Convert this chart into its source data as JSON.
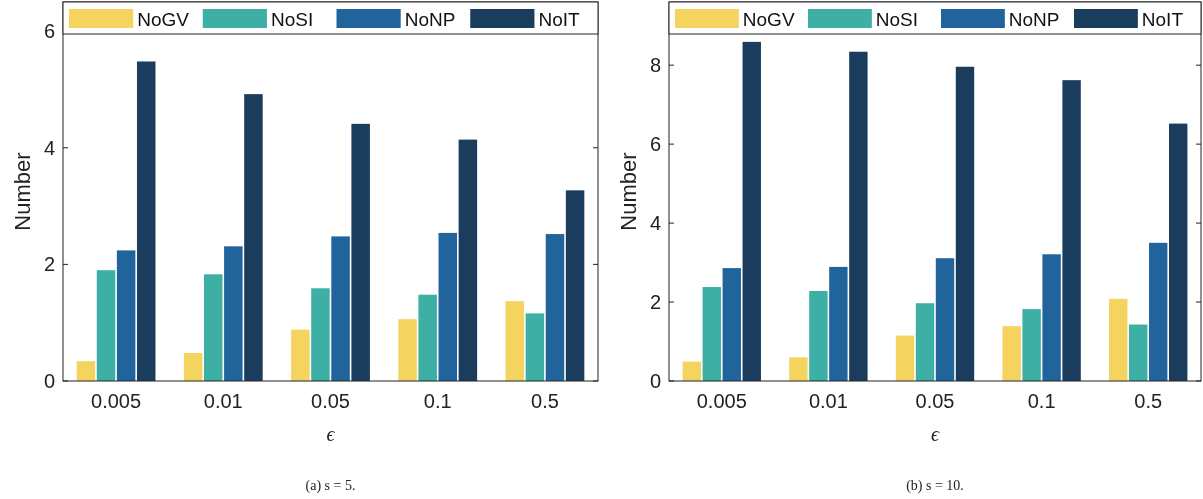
{
  "chart_data": [
    {
      "type": "bar",
      "title": "(a) s = 5.",
      "xlabel": "ϵ",
      "ylabel": "Number",
      "categories": [
        "0.005",
        "0.01",
        "0.05",
        "0.1",
        "0.5"
      ],
      "ylim": [
        0,
        6.5
      ],
      "yticks": [
        0,
        2,
        4,
        6
      ],
      "grid": false,
      "legend": "top",
      "series": [
        {
          "name": "NoGV",
          "color": "#f4d35e",
          "values": [
            0.34,
            0.48,
            0.88,
            1.06,
            1.37
          ]
        },
        {
          "name": "NoSI",
          "color": "#3dafa5",
          "values": [
            1.9,
            1.83,
            1.59,
            1.48,
            1.16
          ]
        },
        {
          "name": "NoNP",
          "color": "#21649c",
          "values": [
            2.24,
            2.31,
            2.48,
            2.54,
            2.52
          ]
        },
        {
          "name": "NoIT",
          "color": "#1a3d5e",
          "values": [
            5.48,
            4.92,
            4.41,
            4.14,
            3.27
          ]
        }
      ]
    },
    {
      "type": "bar",
      "title": "(b) s = 10.",
      "xlabel": "ϵ",
      "ylabel": "Number",
      "categories": [
        "0.005",
        "0.01",
        "0.05",
        "0.1",
        "0.5"
      ],
      "ylim": [
        0,
        9.6
      ],
      "yticks": [
        0,
        2,
        4,
        6,
        8
      ],
      "grid": false,
      "legend": "top",
      "series": [
        {
          "name": "NoGV",
          "color": "#f4d35e",
          "values": [
            0.49,
            0.6,
            1.15,
            1.39,
            2.08
          ]
        },
        {
          "name": "NoSI",
          "color": "#3dafa5",
          "values": [
            2.38,
            2.28,
            1.97,
            1.82,
            1.43
          ]
        },
        {
          "name": "NoNP",
          "color": "#21649c",
          "values": [
            2.86,
            2.89,
            3.11,
            3.21,
            3.5
          ]
        },
        {
          "name": "NoIT",
          "color": "#1a3d5e",
          "values": [
            8.59,
            8.34,
            7.96,
            7.62,
            6.52
          ]
        }
      ]
    }
  ]
}
